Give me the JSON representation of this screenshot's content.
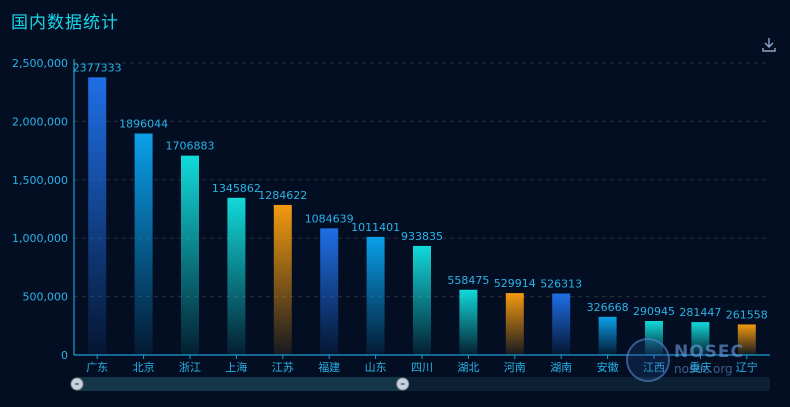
{
  "header": {
    "title": "国内数据统计"
  },
  "toolbar": {
    "download_icon": "download-icon"
  },
  "watermark": {
    "brand": "NOSEC",
    "domain": "nosec.org"
  },
  "colors": {
    "axis": "#1d9dd6",
    "label": "#2ab3e8",
    "grid": "#2a2f3a",
    "bar_blue": "#1f6fe6",
    "bar_sky": "#0aa0ea",
    "bar_cyan": "#12dada",
    "bar_orange": "#f39a0f"
  },
  "chart_data": {
    "type": "bar",
    "title": "国内数据统计",
    "xlabel": "",
    "ylabel": "",
    "ylim": [
      0,
      2500000
    ],
    "yticks": [
      "0",
      "500,000",
      "1,000,000",
      "1,500,000",
      "2,000,000",
      "2,500,000"
    ],
    "grid": true,
    "categories": [
      "广东",
      "北京",
      "浙江",
      "上海",
      "江苏",
      "福建",
      "山东",
      "四川",
      "湖北",
      "河南",
      "湖南",
      "安徽",
      "江西",
      "重庆",
      "辽宁"
    ],
    "values": [
      2377333,
      1896044,
      1706883,
      1345862,
      1284622,
      1084639,
      1011401,
      933835,
      558475,
      529914,
      526313,
      326668,
      290945,
      281447,
      261558
    ],
    "bar_colors": [
      "blue",
      "sky",
      "cyan",
      "cyan",
      "orange",
      "blue",
      "sky",
      "cyan",
      "cyan",
      "orange",
      "blue",
      "sky",
      "cyan",
      "cyan",
      "orange"
    ],
    "datazoom": {
      "start": 0,
      "end": 0.47
    }
  }
}
